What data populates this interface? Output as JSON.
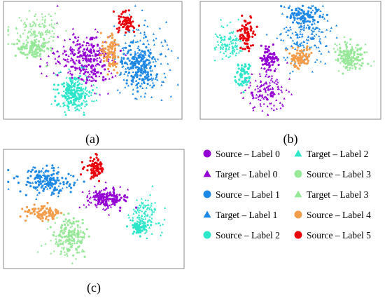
{
  "chart_data": [
    {
      "type": "scatter",
      "caption_letter": "a",
      "title": "",
      "xlabel": "",
      "ylabel": "",
      "grid": false,
      "legend": "shared, bottom-right",
      "clusters": [
        {
          "series": "Source – Label 0",
          "cx": 0.47,
          "cy": 0.5,
          "rx": 0.15,
          "ry": 0.26,
          "n": 120
        },
        {
          "series": "Target – Label 0",
          "cx": 0.45,
          "cy": 0.48,
          "rx": 0.22,
          "ry": 0.3,
          "n": 170
        },
        {
          "series": "Source – Label 1",
          "cx": 0.76,
          "cy": 0.55,
          "rx": 0.1,
          "ry": 0.2,
          "n": 140
        },
        {
          "series": "Target – Label 1",
          "cx": 0.78,
          "cy": 0.5,
          "rx": 0.17,
          "ry": 0.36,
          "n": 200
        },
        {
          "series": "Source – Label 2",
          "cx": 0.38,
          "cy": 0.78,
          "rx": 0.09,
          "ry": 0.16,
          "n": 110
        },
        {
          "series": "Target – Label 2",
          "cx": 0.4,
          "cy": 0.8,
          "rx": 0.12,
          "ry": 0.2,
          "n": 130
        },
        {
          "series": "Source – Label 3",
          "cx": 0.16,
          "cy": 0.4,
          "rx": 0.1,
          "ry": 0.1,
          "n": 90
        },
        {
          "series": "Target – Label 3",
          "cx": 0.18,
          "cy": 0.25,
          "rx": 0.16,
          "ry": 0.2,
          "n": 150
        },
        {
          "series": "Source – Label 4",
          "cx": 0.6,
          "cy": 0.45,
          "rx": 0.06,
          "ry": 0.18,
          "n": 90
        },
        {
          "series": "Source – Label 5",
          "cx": 0.69,
          "cy": 0.17,
          "rx": 0.05,
          "ry": 0.11,
          "n": 70
        }
      ]
    },
    {
      "type": "scatter",
      "caption_letter": "b",
      "title": "",
      "xlabel": "",
      "ylabel": "",
      "grid": false,
      "legend": "shared, bottom-right",
      "clusters": [
        {
          "series": "Source – Label 0",
          "cx": 0.38,
          "cy": 0.48,
          "rx": 0.06,
          "ry": 0.1,
          "n": 70
        },
        {
          "series": "Target – Label 0",
          "cx": 0.36,
          "cy": 0.78,
          "rx": 0.13,
          "ry": 0.2,
          "n": 150
        },
        {
          "series": "Source – Label 1",
          "cx": 0.58,
          "cy": 0.1,
          "rx": 0.1,
          "ry": 0.1,
          "n": 90
        },
        {
          "series": "Target – Label 1",
          "cx": 0.58,
          "cy": 0.3,
          "rx": 0.16,
          "ry": 0.28,
          "n": 170
        },
        {
          "series": "Source – Label 2",
          "cx": 0.23,
          "cy": 0.63,
          "rx": 0.05,
          "ry": 0.12,
          "n": 60
        },
        {
          "series": "Target – Label 2",
          "cx": 0.15,
          "cy": 0.35,
          "rx": 0.09,
          "ry": 0.18,
          "n": 110
        },
        {
          "series": "Source – Label 3",
          "cx": 0.84,
          "cy": 0.47,
          "rx": 0.08,
          "ry": 0.12,
          "n": 90
        },
        {
          "series": "Target – Label 3",
          "cx": 0.84,
          "cy": 0.47,
          "rx": 0.11,
          "ry": 0.15,
          "n": 90
        },
        {
          "series": "Source – Label 4",
          "cx": 0.56,
          "cy": 0.48,
          "rx": 0.07,
          "ry": 0.09,
          "n": 80
        },
        {
          "series": "Source – Label 5",
          "cx": 0.25,
          "cy": 0.27,
          "rx": 0.05,
          "ry": 0.18,
          "n": 80
        }
      ]
    },
    {
      "type": "scatter",
      "caption_letter": "c",
      "title": "",
      "xlabel": "",
      "ylabel": "",
      "grid": false,
      "legend": "shared, bottom-right",
      "clusters": [
        {
          "series": "Source – Label 0",
          "cx": 0.6,
          "cy": 0.41,
          "rx": 0.09,
          "ry": 0.08,
          "n": 80
        },
        {
          "series": "Target – Label 0",
          "cx": 0.55,
          "cy": 0.4,
          "rx": 0.13,
          "ry": 0.12,
          "n": 110
        },
        {
          "series": "Source – Label 1",
          "cx": 0.23,
          "cy": 0.25,
          "rx": 0.16,
          "ry": 0.12,
          "n": 140
        },
        {
          "series": "Target – Label 1",
          "cx": 0.24,
          "cy": 0.27,
          "rx": 0.18,
          "ry": 0.15,
          "n": 40
        },
        {
          "series": "Source – Label 2",
          "cx": 0.76,
          "cy": 0.66,
          "rx": 0.07,
          "ry": 0.07,
          "n": 60
        },
        {
          "series": "Target – Label 2",
          "cx": 0.8,
          "cy": 0.55,
          "rx": 0.1,
          "ry": 0.18,
          "n": 110
        },
        {
          "series": "Source – Label 3",
          "cx": 0.37,
          "cy": 0.73,
          "rx": 0.1,
          "ry": 0.15,
          "n": 90
        },
        {
          "series": "Target – Label 3",
          "cx": 0.36,
          "cy": 0.75,
          "rx": 0.13,
          "ry": 0.17,
          "n": 120
        },
        {
          "series": "Source – Label 4",
          "cx": 0.22,
          "cy": 0.53,
          "rx": 0.12,
          "ry": 0.07,
          "n": 90
        },
        {
          "series": "Source – Label 5",
          "cx": 0.51,
          "cy": 0.14,
          "rx": 0.06,
          "ry": 0.1,
          "n": 80
        }
      ]
    }
  ],
  "legend": {
    "items": [
      {
        "label": "Source – Label 0",
        "marker": "circle",
        "color": "#9400D3"
      },
      {
        "label": "Target – Label 0",
        "marker": "triangle",
        "color": "#9400D3"
      },
      {
        "label": "Source – Label 1",
        "marker": "circle",
        "color": "#1E88E5"
      },
      {
        "label": "Target – Label 1",
        "marker": "triangle",
        "color": "#1E88E5"
      },
      {
        "label": "Source – Label 2",
        "marker": "circle",
        "color": "#2EE6C9"
      },
      {
        "label": "Target – Label 2",
        "marker": "triangle",
        "color": "#2EE6C9"
      },
      {
        "label": "Source – Label 3",
        "marker": "circle",
        "color": "#98E89A"
      },
      {
        "label": "Target – Label 3",
        "marker": "triangle",
        "color": "#98E89A"
      },
      {
        "label": "Source – Label 4",
        "marker": "circle",
        "color": "#F39C4A"
      },
      {
        "label": "Source – Label 5",
        "marker": "circle",
        "color": "#E8000B"
      }
    ]
  },
  "captions": {
    "a": "(a)",
    "b": "(b)",
    "c": "(c)"
  }
}
